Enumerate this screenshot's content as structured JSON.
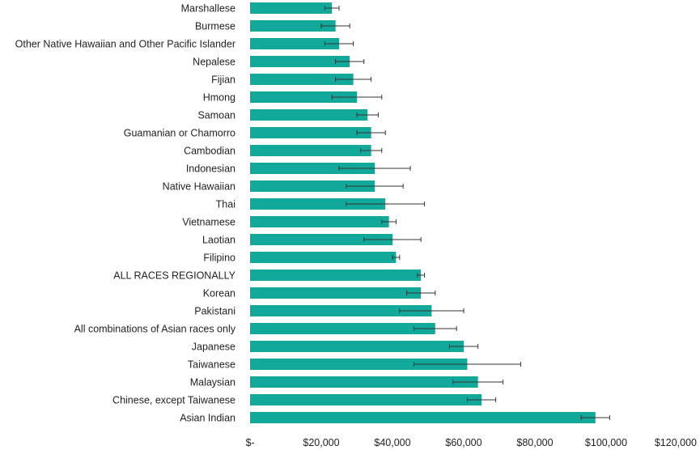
{
  "chart_data": {
    "type": "bar",
    "orientation": "horizontal",
    "bar_color": "#12A89A",
    "error_bar_color": "#333333",
    "grid": false,
    "legend": "none",
    "xlim": [
      0,
      120000
    ],
    "x_ticks": [
      0,
      20000,
      40000,
      60000,
      80000,
      100000,
      120000
    ],
    "x_tick_labels": [
      "$-",
      "$20,000",
      "$40,000",
      "$60,000",
      "$80,000",
      "$100,000",
      "$120,000"
    ],
    "categories": [
      "Marshallese",
      "Burmese",
      "Other Native Hawaiian and Other Pacific Islander",
      "Nepalese",
      "Fijian",
      "Hmong",
      "Samoan",
      "Guamanian or Chamorro",
      "Cambodian",
      "Indonesian",
      "Native Hawaiian",
      "Thai",
      "Vietnamese",
      "Laotian",
      "Filipino",
      "ALL RACES REGIONALLY",
      "Korean",
      "Pakistani",
      "All combinations of Asian races only",
      "Japanese",
      "Taiwanese",
      "Malaysian",
      "Chinese, except Taiwanese",
      "Asian Indian"
    ],
    "values": [
      23000,
      24000,
      25000,
      28000,
      29000,
      30000,
      33000,
      34000,
      34000,
      35000,
      35000,
      38000,
      39000,
      40000,
      41000,
      48000,
      48000,
      51000,
      52000,
      60000,
      61000,
      64000,
      65000,
      97000
    ],
    "error_low": [
      21000,
      20000,
      21000,
      24000,
      24000,
      23000,
      30000,
      30000,
      31000,
      25000,
      27000,
      27000,
      37000,
      32000,
      40000,
      47000,
      44000,
      42000,
      46000,
      56000,
      46000,
      57000,
      61000,
      93000
    ],
    "error_high": [
      25000,
      28000,
      29000,
      32000,
      34000,
      37000,
      36000,
      38000,
      37000,
      45000,
      43000,
      49000,
      41000,
      48000,
      42000,
      49000,
      52000,
      60000,
      58000,
      64000,
      76000,
      71000,
      69000,
      101000
    ]
  }
}
